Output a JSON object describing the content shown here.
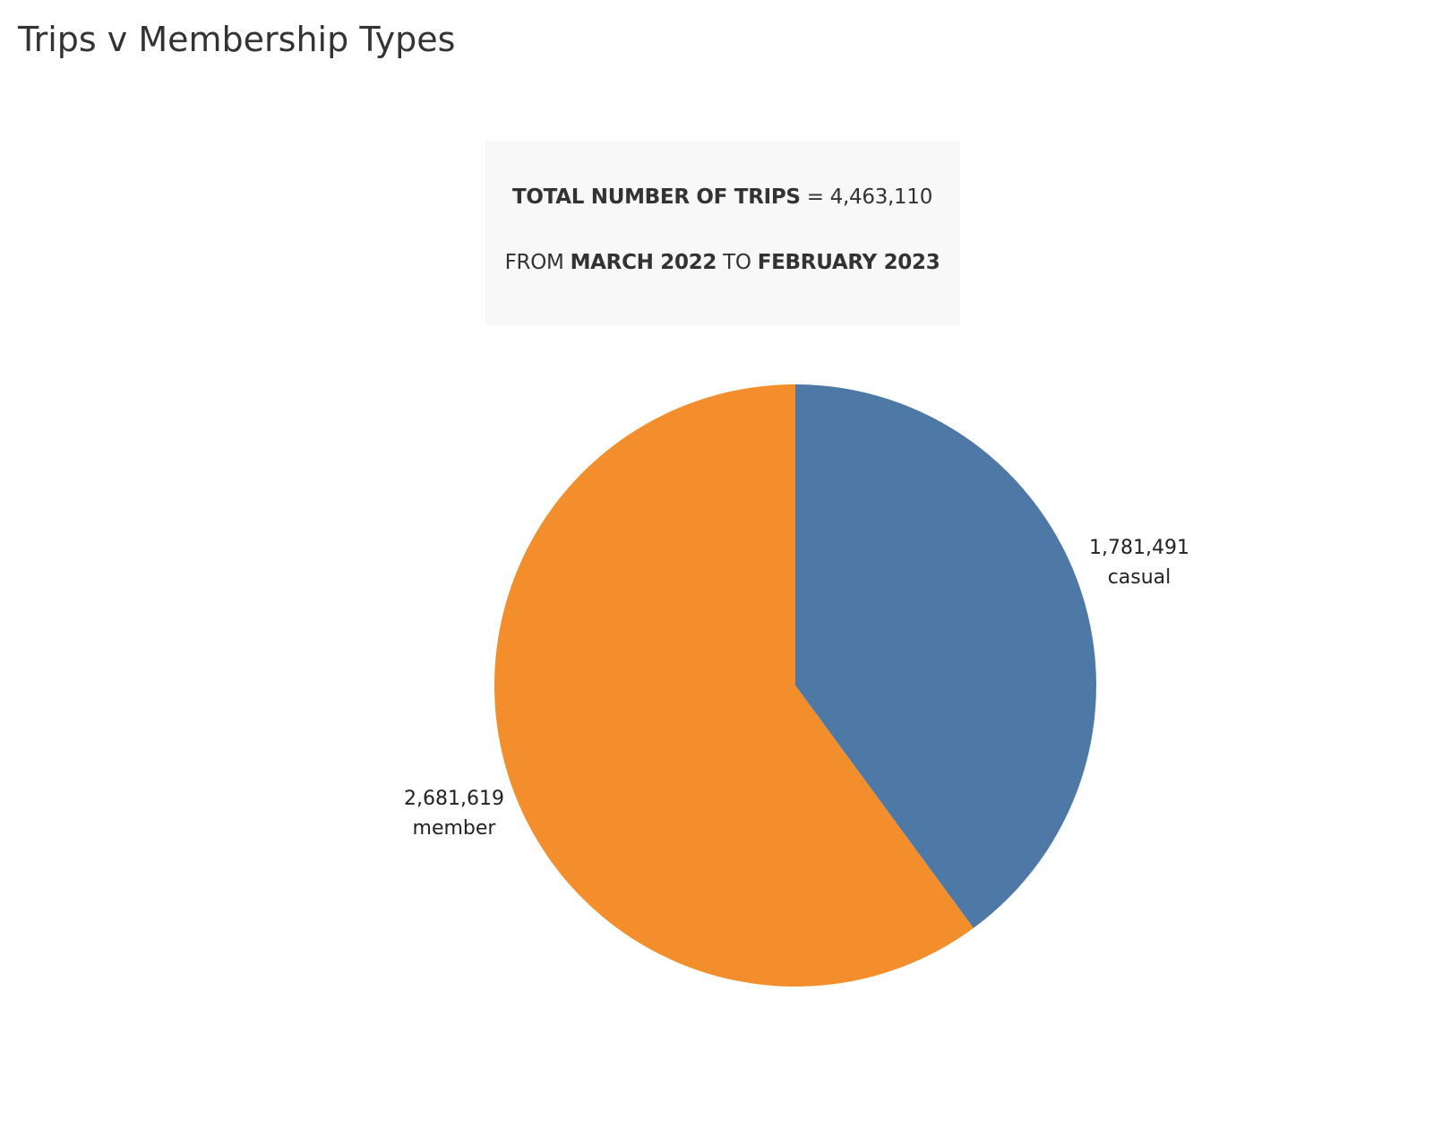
{
  "title": "Trips v Membership Types",
  "info_box": {
    "line1_bold": "TOTAL NUMBER OF TRIPS",
    "line1_rest": "= 4,463,110",
    "line2_prefix": "FROM",
    "line2_start": "MARCH 2022",
    "line2_mid": "TO",
    "line2_end": "FEBRUARY 2023"
  },
  "chart_data": {
    "type": "pie",
    "title": "Trips v Membership Types",
    "slices": [
      {
        "name": "casual",
        "value": 1781491,
        "value_label": "1,781,491",
        "color": "#4e79a7"
      },
      {
        "name": "member",
        "value": 2681619,
        "value_label": "2,681,619",
        "color": "#f28e2b"
      }
    ],
    "start_angle": "12 o'clock",
    "direction": "clockwise",
    "legend": "none"
  }
}
